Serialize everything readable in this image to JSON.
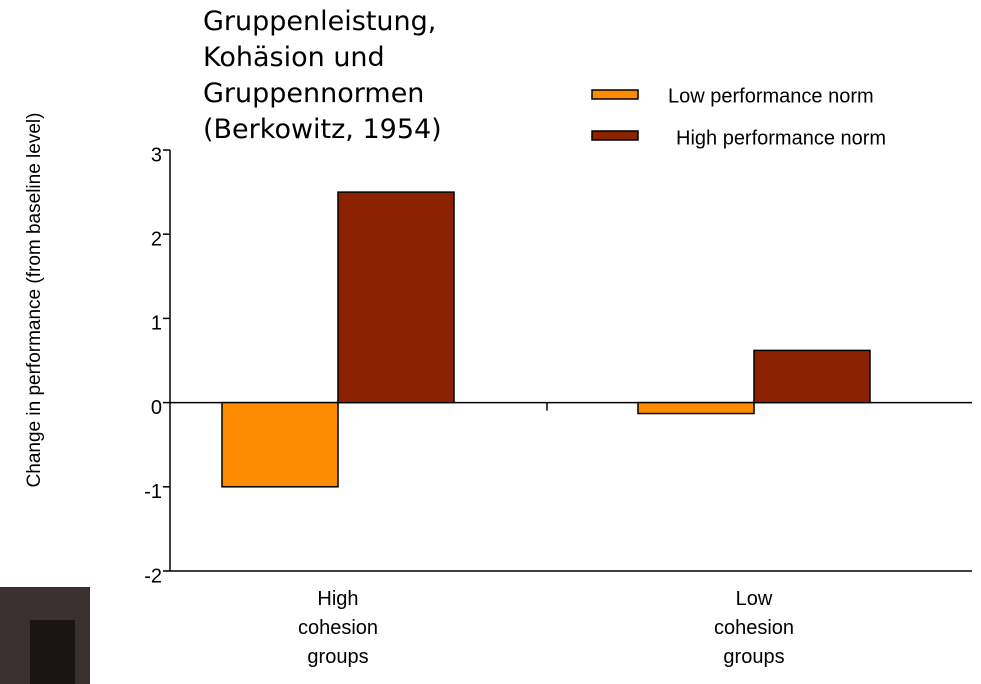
{
  "chart_data": {
    "type": "bar",
    "title": "Gruppenleistung,\nKohäsion und\nGruppennormen\n(Berkowitz, 1954)",
    "y_label": "Change in performance (from baseline level)",
    "categories": [
      "High\ncohesion\ngroups",
      "Low\ncohesion\ngroups"
    ],
    "series": [
      {
        "name": "Low performance norm",
        "color": "#ff8c00",
        "values": [
          -1,
          -0.13
        ]
      },
      {
        "name": "High performance norm",
        "color": "#8b2300",
        "values": [
          2.5,
          0.62
        ]
      }
    ],
    "ylim": [
      -2,
      3
    ],
    "yticks": [
      -2,
      -1,
      0,
      1,
      2,
      3
    ]
  }
}
